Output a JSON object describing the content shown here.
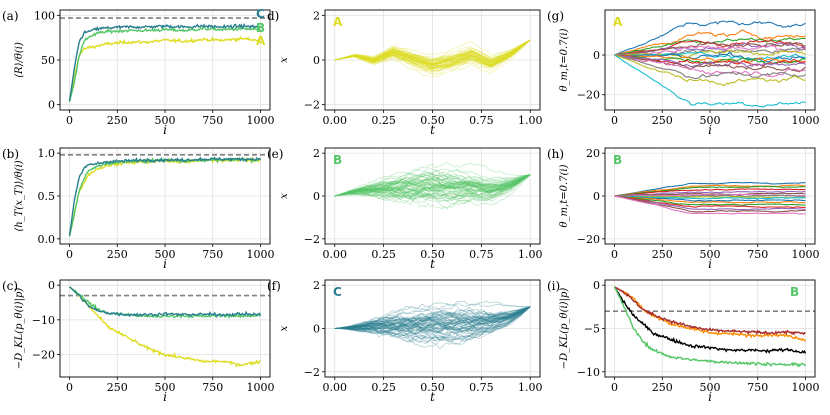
{
  "colors": {
    "A": "#dddd22",
    "B": "#55c667",
    "C": "#2a7f8e",
    "dashed": "#808080"
  },
  "chart_data": [
    {
      "id": "a",
      "panel_label": "(a)",
      "type": "line",
      "ylabel": "⟨R⟩/θ(i)",
      "xlabel": "i",
      "xlim": [
        0,
        1000
      ],
      "ylim": [
        0,
        100
      ],
      "xticks": [
        "0",
        "250",
        "500",
        "750",
        "1000"
      ],
      "yticks": [
        "0",
        "50",
        "100"
      ],
      "reference_line": 97,
      "labels_right": [
        "C",
        "B",
        "A"
      ],
      "series": [
        {
          "name": "A",
          "color": "#dddd22",
          "x": [
            0,
            25,
            50,
            75,
            100,
            150,
            200,
            300,
            400,
            500,
            600,
            700,
            800,
            900,
            1000
          ],
          "y": [
            3,
            30,
            55,
            62,
            64,
            66,
            68,
            70,
            70,
            72,
            71,
            73,
            72,
            74,
            72
          ]
        },
        {
          "name": "B",
          "color": "#55c667",
          "x": [
            0,
            25,
            50,
            75,
            100,
            150,
            200,
            300,
            400,
            500,
            600,
            700,
            800,
            900,
            1000
          ],
          "y": [
            3,
            25,
            55,
            70,
            76,
            80,
            82,
            83,
            83,
            84,
            83,
            85,
            84,
            85,
            84
          ]
        },
        {
          "name": "C",
          "color": "#2a7f8e",
          "x": [
            0,
            25,
            50,
            75,
            100,
            150,
            200,
            300,
            400,
            500,
            600,
            700,
            800,
            900,
            1000
          ],
          "y": [
            4,
            40,
            70,
            80,
            82,
            85,
            86,
            87,
            87,
            88,
            87,
            88,
            87,
            88,
            87
          ]
        }
      ]
    },
    {
      "id": "b",
      "panel_label": "(b)",
      "type": "line",
      "ylabel": "⟨h_T(x_T)⟩/θ(i)",
      "xlabel": "i",
      "xlim": [
        0,
        1000
      ],
      "ylim": [
        0,
        1.0
      ],
      "xticks": [
        "0",
        "250",
        "500",
        "750",
        "1000"
      ],
      "yticks": [
        "0.0",
        "0.5",
        "1.0"
      ],
      "reference_line": 0.98,
      "series": [
        {
          "name": "A",
          "color": "#dddd22",
          "x": [
            0,
            25,
            50,
            75,
            100,
            150,
            200,
            300,
            400,
            500,
            600,
            700,
            800,
            900,
            1000
          ],
          "y": [
            0.03,
            0.3,
            0.55,
            0.65,
            0.75,
            0.82,
            0.86,
            0.89,
            0.9,
            0.91,
            0.9,
            0.92,
            0.91,
            0.92,
            0.92
          ]
        },
        {
          "name": "B",
          "color": "#55c667",
          "x": [
            0,
            25,
            50,
            75,
            100,
            150,
            200,
            300,
            400,
            500,
            600,
            700,
            800,
            900,
            1000
          ],
          "y": [
            0.03,
            0.28,
            0.55,
            0.7,
            0.8,
            0.85,
            0.88,
            0.9,
            0.91,
            0.92,
            0.91,
            0.92,
            0.92,
            0.93,
            0.92
          ]
        },
        {
          "name": "C",
          "color": "#2a7f8e",
          "x": [
            0,
            25,
            50,
            75,
            100,
            150,
            200,
            300,
            400,
            500,
            600,
            700,
            800,
            900,
            1000
          ],
          "y": [
            0.04,
            0.45,
            0.72,
            0.82,
            0.86,
            0.88,
            0.9,
            0.91,
            0.92,
            0.92,
            0.92,
            0.93,
            0.93,
            0.93,
            0.93
          ]
        }
      ]
    },
    {
      "id": "c",
      "panel_label": "(c)",
      "type": "line",
      "ylabel": "−D_KL(p_θ(i)|p)",
      "xlabel": "i",
      "xlim": [
        0,
        1000
      ],
      "ylim": [
        -25,
        0
      ],
      "xticks": [
        "0",
        "250",
        "500",
        "750",
        "1000"
      ],
      "yticks": [
        "0",
        "−10",
        "−20"
      ],
      "reference_line": -3,
      "series": [
        {
          "name": "A",
          "color": "#dddd22",
          "x": [
            0,
            50,
            100,
            150,
            200,
            300,
            400,
            500,
            600,
            700,
            800,
            900,
            1000
          ],
          "y": [
            -0.5,
            -3,
            -6,
            -9,
            -12,
            -15,
            -18,
            -20,
            -21,
            -22,
            -22,
            -23,
            -22
          ]
        },
        {
          "name": "B",
          "color": "#55c667",
          "x": [
            0,
            50,
            100,
            150,
            200,
            300,
            400,
            500,
            600,
            700,
            800,
            900,
            1000
          ],
          "y": [
            -0.5,
            -2.5,
            -5,
            -7,
            -8,
            -8.5,
            -9,
            -9,
            -8.8,
            -9,
            -8.7,
            -9,
            -8.6
          ]
        },
        {
          "name": "C",
          "color": "#2a7f8e",
          "x": [
            0,
            50,
            100,
            150,
            200,
            300,
            400,
            500,
            600,
            700,
            800,
            900,
            1000
          ],
          "y": [
            -0.5,
            -3,
            -6,
            -7.5,
            -8,
            -8.5,
            -8.5,
            -8.3,
            -8.5,
            -8.4,
            -8.5,
            -8.3,
            -8.5
          ]
        }
      ]
    },
    {
      "id": "d",
      "panel_label": "d)",
      "type": "line",
      "series_label": "A",
      "ylabel": "x",
      "xlabel": "t",
      "xlim": [
        0,
        1.0
      ],
      "ylim": [
        -2,
        2
      ],
      "xticks": [
        "0.00",
        "0.25",
        "0.50",
        "0.75",
        "1.00"
      ],
      "yticks": [
        "−2",
        "0",
        "2"
      ],
      "trajectory_color": "#dddd22",
      "mean_path": {
        "t": [
          0,
          0.1,
          0.2,
          0.3,
          0.4,
          0.5,
          0.6,
          0.7,
          0.8,
          0.9,
          1.0
        ],
        "x": [
          0,
          0.2,
          0,
          0.4,
          0.1,
          -0.2,
          0,
          0.3,
          -0.1,
          0.3,
          0.9
        ]
      }
    },
    {
      "id": "e",
      "panel_label": "(e)",
      "type": "line",
      "series_label": "B",
      "ylabel": "x",
      "xlabel": "t",
      "xlim": [
        0,
        1.0
      ],
      "ylim": [
        -2,
        2
      ],
      "xticks": [
        "0.00",
        "0.25",
        "0.50",
        "0.75",
        "1.00"
      ],
      "yticks": [
        "−2",
        "0",
        "2"
      ],
      "trajectory_color": "#55c667",
      "mean_path": {
        "t": [
          0,
          0.1,
          0.2,
          0.3,
          0.4,
          0.5,
          0.6,
          0.7,
          0.8,
          0.9,
          1.0
        ],
        "x": [
          0,
          0.2,
          0.3,
          0.4,
          0.5,
          0.6,
          0.5,
          0.5,
          0.4,
          0.6,
          1.0
        ]
      }
    },
    {
      "id": "f",
      "panel_label": "(f)",
      "type": "line",
      "series_label": "C",
      "ylabel": "x",
      "xlabel": "t",
      "xlim": [
        0,
        1.0
      ],
      "ylim": [
        -2,
        2
      ],
      "xticks": [
        "0.00",
        "0.25",
        "0.50",
        "0.75",
        "1.00"
      ],
      "yticks": [
        "−2",
        "0",
        "2"
      ],
      "trajectory_color": "#2a7f8e",
      "mean_path": {
        "t": [
          0,
          0.1,
          0.2,
          0.3,
          0.4,
          0.5,
          0.6,
          0.7,
          0.8,
          0.9,
          1.0
        ],
        "x": [
          0,
          0.05,
          0.1,
          0.15,
          0.2,
          0.3,
          0.3,
          0.3,
          0.4,
          0.6,
          1.0
        ]
      }
    },
    {
      "id": "g",
      "panel_label": "(g)",
      "type": "line",
      "series_label": "A",
      "ylabel": "θ_m,t=0.7(i)",
      "xlabel": "i",
      "xlim": [
        0,
        1000
      ],
      "ylim": [
        -25,
        20
      ],
      "xticks": [
        "0",
        "250",
        "500",
        "750",
        "1000"
      ],
      "yticks": [
        "−20",
        "0"
      ],
      "final_values": [
        16,
        10,
        8,
        6,
        5,
        4,
        3,
        2,
        1,
        0,
        -1,
        -2,
        -3,
        -4,
        -5,
        -6,
        -8,
        -10,
        -13,
        -24
      ]
    },
    {
      "id": "h",
      "panel_label": "(h)",
      "type": "line",
      "series_label": "B",
      "ylabel": "θ_m,t=0.7(i)",
      "xlabel": "i",
      "xlim": [
        0,
        1000
      ],
      "ylim": [
        -20,
        20
      ],
      "xticks": [
        "0",
        "250",
        "500",
        "750",
        "1000"
      ],
      "yticks": [
        "−20",
        "0",
        "20"
      ],
      "final_values": [
        6,
        5,
        4,
        3,
        2,
        1,
        0.5,
        0,
        -0.5,
        -1,
        -2,
        -3,
        -4,
        -5,
        -6,
        -7,
        -8
      ]
    },
    {
      "id": "i",
      "panel_label": "(i)",
      "type": "line",
      "series_label": "B",
      "ylabel": "−D_KL(p_θ(i)|p)",
      "xlabel": "i",
      "xlim": [
        0,
        1000
      ],
      "ylim": [
        -10,
        0
      ],
      "xticks": [
        "0",
        "250",
        "500",
        "750",
        "1000"
      ],
      "yticks": [
        "0",
        "−5",
        "−10"
      ],
      "reference_line": -3,
      "series": [
        {
          "color": "#ff8c00",
          "x": [
            0,
            50,
            100,
            150,
            200,
            300,
            400,
            500,
            600,
            700,
            800,
            900,
            1000
          ],
          "y": [
            -0.2,
            -0.8,
            -1.5,
            -2.8,
            -3.5,
            -4.5,
            -5,
            -5.5,
            -5.6,
            -5.8,
            -5.7,
            -5.8,
            -6.3
          ]
        },
        {
          "color": "#a52a2a",
          "x": [
            0,
            50,
            100,
            150,
            200,
            300,
            400,
            500,
            600,
            700,
            800,
            900,
            1000
          ],
          "y": [
            -0.2,
            -0.8,
            -1.8,
            -2.8,
            -3.4,
            -4.2,
            -4.8,
            -5.2,
            -5.3,
            -5.4,
            -5.5,
            -5.4,
            -5.6
          ]
        },
        {
          "color": "#000000",
          "x": [
            0,
            50,
            100,
            150,
            200,
            300,
            400,
            500,
            600,
            700,
            800,
            900,
            1000
          ],
          "y": [
            -0.2,
            -2,
            -3.5,
            -4.5,
            -5.5,
            -6.3,
            -7,
            -7.2,
            -7.5,
            -7.5,
            -7.6,
            -7.4,
            -7.8
          ]
        },
        {
          "color": "#55c667",
          "x": [
            0,
            50,
            100,
            150,
            200,
            300,
            400,
            500,
            600,
            700,
            800,
            900,
            1000
          ],
          "y": [
            -0.2,
            -2.5,
            -5,
            -6.5,
            -7.5,
            -8.3,
            -8.6,
            -8.8,
            -8.9,
            -9,
            -9.1,
            -9.2,
            -9.1
          ]
        }
      ]
    }
  ]
}
